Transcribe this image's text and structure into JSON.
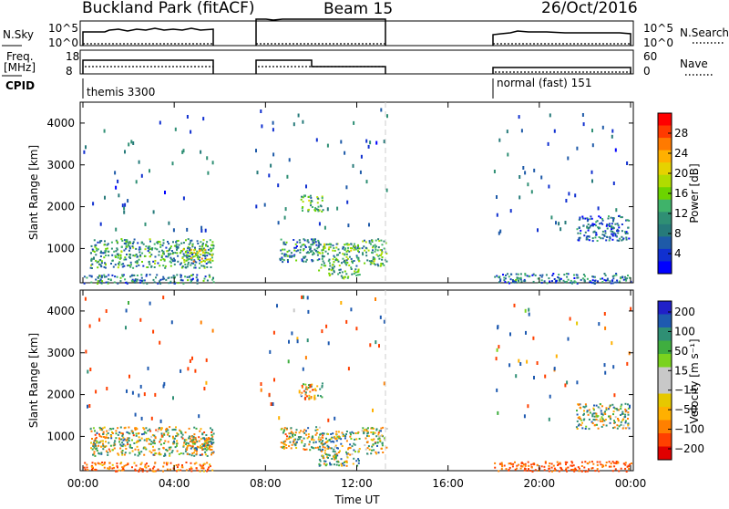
{
  "header": {
    "station": "Buckland Park (fitACF)",
    "beam": "Beam 15",
    "date": "26/Oct/2016"
  },
  "panels": {
    "nsky_label": "N.Sky",
    "nsky_ticks": [
      "10^5",
      "10^0"
    ],
    "nsearch_label": "N.Search",
    "nsearch_ticks": [
      "10^5",
      "10^0"
    ],
    "freq_label_line1": "Freq.",
    "freq_label_line2": "[MHz]",
    "freq_ticks": [
      "18",
      "8"
    ],
    "nave_label": "Nave",
    "nave_ticks": [
      "60",
      "0"
    ],
    "cpid_label": "CPID",
    "cpid_modes": [
      "themis 3300",
      "normal (fast) 151"
    ]
  },
  "axes": {
    "y_label": "Slant Range [km]",
    "y_ticks": [
      "4000",
      "3000",
      "2000",
      "1000"
    ],
    "x_label": "Time UT",
    "x_ticks": [
      "00:00",
      "04:00",
      "08:00",
      "12:00",
      "16:00",
      "20:00",
      "00:00"
    ]
  },
  "colorbars": {
    "power": {
      "label": "Power [dB]",
      "ticks": [
        "28",
        "24",
        "20",
        "16",
        "12",
        "8",
        "4"
      ],
      "colors": [
        "#ff0000",
        "#ff3a00",
        "#ff7a00",
        "#ffb000",
        "#e6d200",
        "#b0dc00",
        "#6cd400",
        "#3fb36a",
        "#2f8f74",
        "#267a7a",
        "#1e5aa8",
        "#1030d0",
        "#0000ff"
      ]
    },
    "velocity": {
      "label": "Velocity [m s⁻¹]",
      "ticks": [
        "200",
        "100",
        "50",
        "15",
        "−15",
        "−50",
        "−100",
        "−200"
      ],
      "colors": [
        "#2020c8",
        "#1e5ab0",
        "#2f8f74",
        "#3fae3f",
        "#7ad21e",
        "#c8c8c8",
        "#c8c8c8",
        "#e6c800",
        "#ffb000",
        "#ff8000",
        "#ff4000",
        "#e00000"
      ]
    }
  },
  "chart_data": {
    "type": "heatmap",
    "title": "Buckland Park (fitACF) Beam 15 26/Oct/2016",
    "xlabel": "Time UT",
    "ylabel": "Slant Range [km]",
    "xlim": [
      0,
      24
    ],
    "ylim": [
      180,
      4500
    ],
    "time_coverage_ut_hours": [
      [
        0.0,
        5.7
      ],
      [
        7.5,
        13.3
      ],
      [
        18.0,
        24.0
      ]
    ],
    "cpid_segments": [
      {
        "mode": "themis 3300",
        "start": 0.0,
        "end": 5.7
      },
      {
        "mode": "normal (fast) 151",
        "start": 18.0,
        "end": 24.0
      }
    ],
    "scatter_regions": [
      {
        "start": 0.3,
        "end": 5.7,
        "range_min": 550,
        "range_max": 1250,
        "power_db": 12,
        "velocity": 0
      },
      {
        "start": 0.0,
        "end": 5.7,
        "range_min": 180,
        "range_max": 400,
        "power_db": 10,
        "velocity": -60
      },
      {
        "start": 4.3,
        "end": 5.7,
        "range_min": 700,
        "range_max": 1000,
        "power_db": 20,
        "velocity": 0
      },
      {
        "start": 8.6,
        "end": 10.5,
        "range_min": 700,
        "range_max": 1250,
        "power_db": 10,
        "velocity": 0
      },
      {
        "start": 9.5,
        "end": 10.5,
        "range_min": 1900,
        "range_max": 2300,
        "power_db": 14,
        "velocity": 0
      },
      {
        "start": 10.3,
        "end": 12.1,
        "range_min": 300,
        "range_max": 1150,
        "power_db": 14,
        "velocity": 20
      },
      {
        "start": 12.2,
        "end": 13.3,
        "range_min": 600,
        "range_max": 1250,
        "power_db": 14,
        "velocity": 0
      },
      {
        "start": 18.0,
        "end": 24.0,
        "range_min": 180,
        "range_max": 420,
        "power_db": 9,
        "velocity": -80
      },
      {
        "start": 21.6,
        "end": 23.9,
        "range_min": 1200,
        "range_max": 1800,
        "power_db": 8,
        "velocity": 10
      }
    ]
  }
}
